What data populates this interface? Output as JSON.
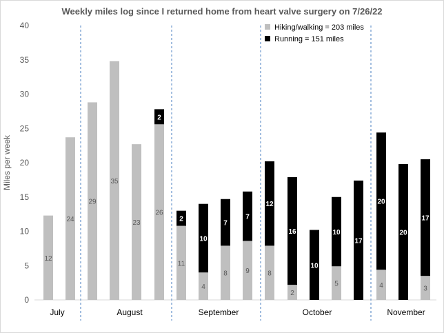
{
  "chart_data": {
    "type": "bar",
    "stacked": true,
    "title": "Weekly miles log since I returned home from heart valve surgery on 7/26/22",
    "ylabel": "Miles per week",
    "xlabel": "",
    "ylim": [
      0,
      40
    ],
    "yticks": [
      0,
      5,
      10,
      15,
      20,
      25,
      30,
      35,
      40
    ],
    "grid": false,
    "legend_position": "top-right",
    "month_labels": [
      "July",
      "August",
      "September",
      "October",
      "November"
    ],
    "month_week_counts": [
      2,
      4,
      4,
      5,
      3
    ],
    "series": [
      {
        "name": "Hiking/walking",
        "legend_text": "Hiking/walking  = 203 miles",
        "color": "#bfbfbf",
        "label_color": "#595959",
        "values": [
          12.3,
          23.7,
          28.8,
          34.8,
          22.7,
          25.6,
          10.8,
          4.0,
          7.9,
          8.6,
          7.9,
          2.2,
          0,
          4.9,
          0,
          4.4,
          0,
          3.5
        ],
        "labels": [
          "12",
          "24",
          "29",
          "35",
          "23",
          "26",
          "11",
          "4",
          "8",
          "9",
          "8",
          "2",
          "",
          "5",
          "",
          "4",
          "",
          "3"
        ]
      },
      {
        "name": "Running",
        "legend_text": "Running  = 151 miles",
        "color": "#000000",
        "label_color": "#ffffff",
        "values": [
          0,
          0,
          0,
          0,
          0,
          2.2,
          2.2,
          10.0,
          6.8,
          7.2,
          12.3,
          15.7,
          10.2,
          10.1,
          17.4,
          20.0,
          19.8,
          17.0
        ],
        "labels": [
          "",
          "",
          "",
          "",
          "",
          "2",
          "2",
          "10",
          "7",
          "7",
          "12",
          "16",
          "10",
          "10",
          "17",
          "20",
          "20",
          "17"
        ]
      }
    ]
  }
}
